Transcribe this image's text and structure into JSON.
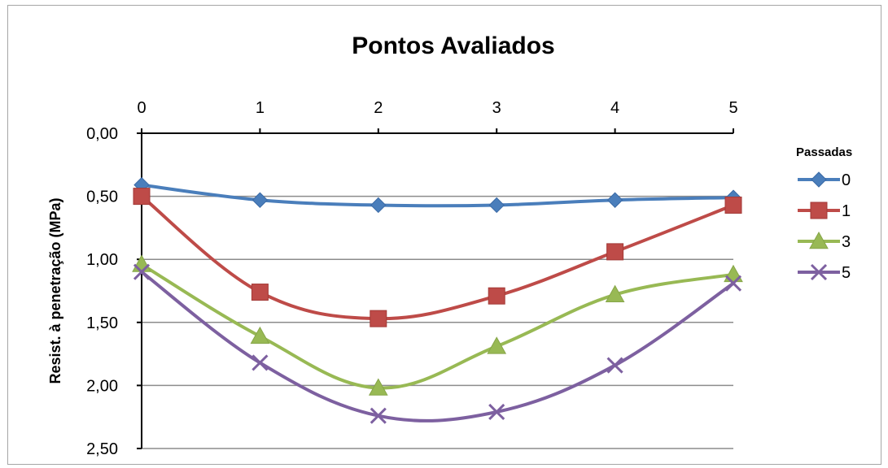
{
  "chart_data": {
    "type": "line",
    "title": "Pontos Avaliados",
    "xlabel": "",
    "ylabel": "Resist. à penetração (MPa)",
    "x": [
      0,
      1,
      2,
      3,
      4,
      5
    ],
    "x_tick_labels": [
      "0",
      "1",
      "2",
      "3",
      "4",
      "5"
    ],
    "y_tick_labels": [
      "0,00",
      "0,50",
      "1,00",
      "1,50",
      "2,00",
      "2,50"
    ],
    "y_ticks": [
      0,
      0.5,
      1.0,
      1.5,
      2.0,
      2.5
    ],
    "ylim": [
      0,
      2.5
    ],
    "y_inverted": true,
    "x_axis_position": "top",
    "grid": "horizontal",
    "legend": {
      "title": "Passadas",
      "placement": "right"
    },
    "series": [
      {
        "name": "0",
        "values": [
          0.41,
          0.53,
          0.57,
          0.57,
          0.53,
          0.51
        ],
        "color": "#4a7ebb",
        "marker": "diamond"
      },
      {
        "name": "1",
        "values": [
          0.5,
          1.26,
          1.47,
          1.29,
          0.94,
          0.57
        ],
        "color": "#be4b48",
        "marker": "square"
      },
      {
        "name": "3",
        "values": [
          1.04,
          1.61,
          2.02,
          1.69,
          1.28,
          1.12
        ],
        "color": "#98b954",
        "marker": "triangle"
      },
      {
        "name": "5",
        "values": [
          1.1,
          1.82,
          2.24,
          2.21,
          1.84,
          1.19
        ],
        "color": "#7d60a0",
        "marker": "x"
      }
    ]
  }
}
